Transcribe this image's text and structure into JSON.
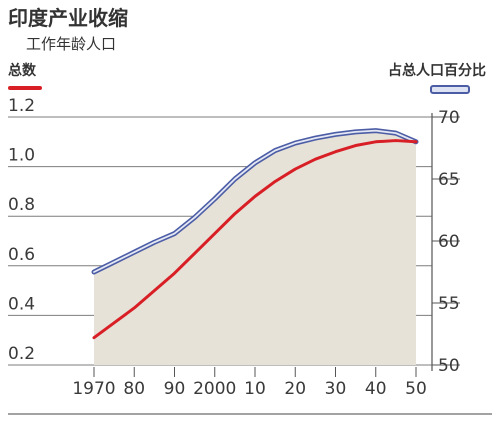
{
  "chart_data": {
    "type": "line",
    "title": "印度产业收缩",
    "subtitle": "工作年龄人口",
    "x": [
      1970,
      1975,
      1980,
      1985,
      1990,
      1995,
      2000,
      2005,
      2010,
      2015,
      2020,
      2025,
      2030,
      2035,
      2040,
      2045,
      2050
    ],
    "xticks": [
      "1970",
      "80",
      "90",
      "2000",
      "10",
      "20",
      "30",
      "40",
      "50"
    ],
    "xtick_values": [
      1970,
      1980,
      1990,
      2000,
      2010,
      2020,
      2030,
      2040,
      2050
    ],
    "series": [
      {
        "name": "总数",
        "axis": "left",
        "color": "#d91f26",
        "values": [
          0.31,
          0.37,
          0.43,
          0.5,
          0.57,
          0.65,
          0.73,
          0.81,
          0.88,
          0.94,
          0.99,
          1.03,
          1.06,
          1.085,
          1.1,
          1.105,
          1.1
        ]
      },
      {
        "name": "占总人口百分比",
        "axis": "right",
        "color": "#4c5da6",
        "values": [
          57.5,
          58.3,
          59.1,
          59.9,
          60.6,
          61.9,
          63.4,
          65.0,
          66.3,
          67.3,
          67.9,
          68.3,
          68.6,
          68.8,
          68.9,
          68.7,
          68.0
        ]
      }
    ],
    "ylim_left": [
      0.2,
      1.2
    ],
    "yticks_left": [
      "0.2",
      "0.4",
      "0.6",
      "0.8",
      "1.0",
      "1.2"
    ],
    "ytick_values_left": [
      0.2,
      0.4,
      0.6,
      0.8,
      1.0,
      1.2
    ],
    "ylim_right": [
      50,
      70
    ],
    "yticks_right": [
      "50",
      "55",
      "60",
      "65",
      "70"
    ],
    "ytick_values_right": [
      50,
      55,
      60,
      65,
      70
    ],
    "legend": [
      {
        "label": "总数",
        "position": "top-left",
        "color": "#d91f26"
      },
      {
        "label": "占总人口百分比",
        "position": "top-right",
        "color": "#4c5da6"
      }
    ],
    "fill_color": "#e6e2d8",
    "grid": true
  }
}
